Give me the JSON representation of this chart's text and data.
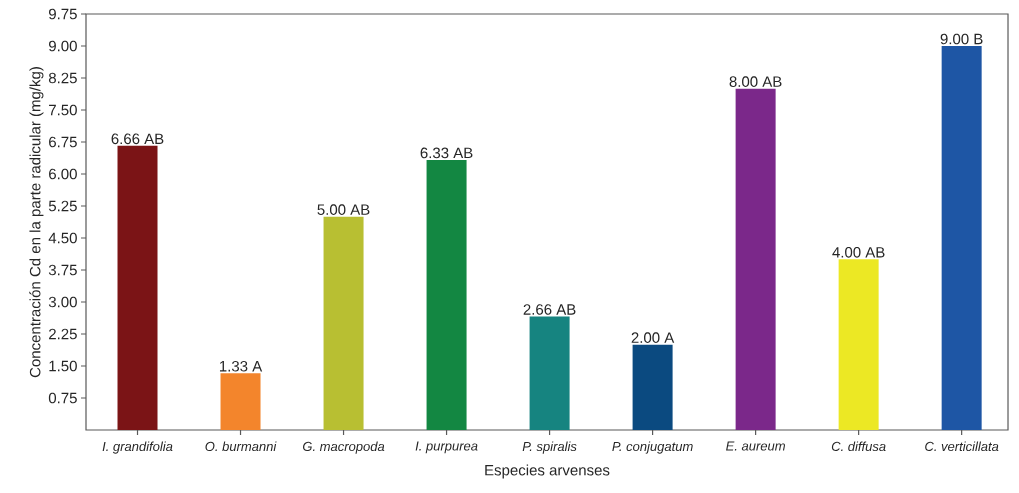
{
  "chart_data": {
    "type": "bar",
    "xlabel": "Especies arvenses",
    "ylabel": "Concentración Cd en la parte radicular (mg/kg)",
    "categories": [
      "I. grandifolia",
      "O. burmanni",
      "G. macropoda",
      "I. purpurea",
      "P. spiralis",
      "P. conjugatum",
      "E. aureum",
      "C. diffusa",
      "C. verticillata"
    ],
    "values": [
      6.66,
      1.33,
      5.0,
      6.33,
      2.66,
      2.0,
      8.0,
      4.0,
      9.0
    ],
    "colors": [
      "#7b1416",
      "#f3852c",
      "#b8bf32",
      "#138742",
      "#168480",
      "#0b4a80",
      "#7b288a",
      "#ece824",
      "#1e56a5"
    ],
    "value_labels": [
      "6.66 AB",
      "1.33 A",
      "5.00 AB",
      "6.33 AB",
      "2.66 AB",
      "2.00 A",
      "8.00 AB",
      "4.00 AB",
      "9.00 B"
    ],
    "ylim": [
      0,
      9.75
    ],
    "yticks": [
      0.75,
      {
        "value": 1.5,
        "label": "1.50"
      },
      2.25,
      {
        "value": 3,
        "label": "3.00"
      },
      3.75,
      {
        "value": 4.5,
        "label": "4.50"
      },
      5.25,
      {
        "value": 6,
        "label": "6.00"
      },
      6.75,
      {
        "value": 7.5,
        "label": "7.50"
      },
      8.25,
      {
        "value": 9,
        "label": "9.00"
      },
      9.75
    ]
  }
}
